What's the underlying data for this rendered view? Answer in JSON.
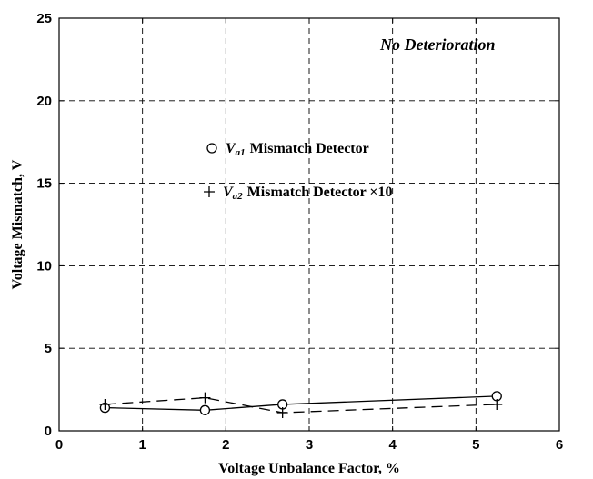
{
  "chart_data": {
    "type": "line",
    "title": "",
    "xlabel": "Voltage Unbalance Factor, %",
    "ylabel": "Voltage Mismatch, V",
    "xlim": [
      0,
      6
    ],
    "ylim": [
      0,
      25
    ],
    "xticks": [
      "0",
      "1",
      "2",
      "3",
      "4",
      "5",
      "6"
    ],
    "yticks": [
      "0",
      "5",
      "10",
      "15",
      "20",
      "25"
    ],
    "grid": true,
    "annotation": "No Deterioration",
    "legend": {
      "placement": "upper-center",
      "entries": [
        {
          "marker": "○",
          "var": "V",
          "sub": "a1",
          "text": "Mismatch Detector"
        },
        {
          "marker": "+",
          "var": "V",
          "sub": "a2",
          "text": "Mismatch Detector ×10"
        }
      ]
    },
    "series": [
      {
        "name": "Va1 Mismatch Detector",
        "marker": "circle",
        "line": "solid",
        "x": [
          0.55,
          1.75,
          2.68,
          5.25
        ],
        "y": [
          1.4,
          1.25,
          1.6,
          2.1
        ]
      },
      {
        "name": "Va2 Mismatch Detector ×10",
        "marker": "plus",
        "line": "dashed",
        "x": [
          0.55,
          1.75,
          2.68,
          5.25
        ],
        "y": [
          1.6,
          2.0,
          1.1,
          1.6
        ]
      }
    ]
  }
}
